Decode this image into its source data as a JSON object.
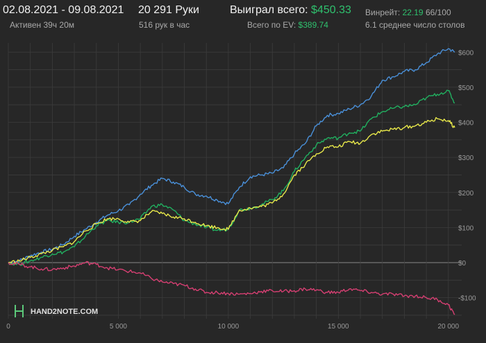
{
  "header": {
    "date_range": "02.08.2021 - 09.08.2021",
    "active_label": "Активен 39ч 20м",
    "hands": "20 291 Руки",
    "hands_per_hour": "516 рук в час",
    "won_label": "Выиграл всего:",
    "won_value": "$450.33",
    "ev_label": "Всего по EV:",
    "ev_value": "$389.74",
    "winrate_label": "Винрейт:",
    "winrate_value": "22.19",
    "winrate_rest": "66/100",
    "tables_label": "6.1 среднее число столов"
  },
  "logo": {
    "text": "HAND2NOTE.COM"
  },
  "colors": {
    "background": "#272727",
    "grid": "#3c3c3c",
    "zero_line": "#8a8a8a",
    "blue": "#4a90d9",
    "green": "#21b060",
    "yellow": "#e8e84a",
    "pink": "#d63f72"
  },
  "chart_data": {
    "type": "line",
    "xlabel": "",
    "ylabel": "",
    "xlim": [
      0,
      20291
    ],
    "ylim": [
      -160,
      640
    ],
    "grid": true,
    "legend": "none",
    "x_ticks": [
      0,
      5000,
      10000,
      15000,
      20000
    ],
    "x_tick_labels": [
      "0",
      "5 000",
      "10 000",
      "15 000",
      "20 000"
    ],
    "y_ticks": [
      -100,
      0,
      100,
      200,
      300,
      400,
      500,
      600
    ],
    "y_tick_labels": [
      "-$100",
      "$0",
      "$100",
      "$200",
      "$300",
      "$400",
      "$500",
      "$600"
    ],
    "x": [
      0,
      500,
      1000,
      1500,
      2000,
      2500,
      3000,
      3500,
      4000,
      4500,
      5000,
      5500,
      6000,
      6500,
      7000,
      7500,
      8000,
      8500,
      9000,
      9500,
      10000,
      10500,
      11000,
      11500,
      12000,
      12500,
      13000,
      13500,
      14000,
      14500,
      15000,
      15500,
      16000,
      16500,
      17000,
      17500,
      18000,
      18500,
      19000,
      19500,
      20000,
      20291
    ],
    "series": [
      {
        "key": "blue",
        "values": [
          0,
          5,
          20,
          30,
          38,
          52,
          75,
          95,
          115,
          135,
          148,
          165,
          195,
          220,
          240,
          230,
          215,
          195,
          190,
          178,
          168,
          215,
          245,
          250,
          255,
          270,
          310,
          340,
          390,
          420,
          425,
          438,
          450,
          475,
          520,
          530,
          545,
          550,
          570,
          595,
          610,
          600
        ]
      },
      {
        "key": "green",
        "values": [
          0,
          -5,
          5,
          15,
          25,
          30,
          45,
          75,
          105,
          120,
          115,
          115,
          125,
          160,
          165,
          150,
          120,
          110,
          100,
          92,
          95,
          150,
          155,
          165,
          180,
          205,
          260,
          300,
          335,
          355,
          355,
          370,
          375,
          410,
          430,
          440,
          445,
          450,
          470,
          480,
          490,
          455
        ]
      },
      {
        "key": "yellow",
        "values": [
          0,
          5,
          15,
          25,
          35,
          45,
          60,
          90,
          110,
          125,
          125,
          115,
          120,
          145,
          140,
          130,
          125,
          115,
          105,
          100,
          95,
          150,
          155,
          160,
          170,
          195,
          250,
          280,
          310,
          330,
          330,
          345,
          340,
          365,
          375,
          380,
          385,
          390,
          400,
          410,
          405,
          385
        ]
      },
      {
        "key": "pink",
        "values": [
          0,
          -5,
          -12,
          -18,
          -20,
          -15,
          -10,
          0,
          -5,
          -15,
          -20,
          -25,
          -30,
          -45,
          -55,
          -60,
          -65,
          -75,
          -85,
          -85,
          -88,
          -90,
          -88,
          -82,
          -80,
          -82,
          -80,
          -75,
          -78,
          -85,
          -85,
          -75,
          -80,
          -85,
          -90,
          -90,
          -95,
          -95,
          -100,
          -105,
          -120,
          -148
        ]
      }
    ]
  }
}
